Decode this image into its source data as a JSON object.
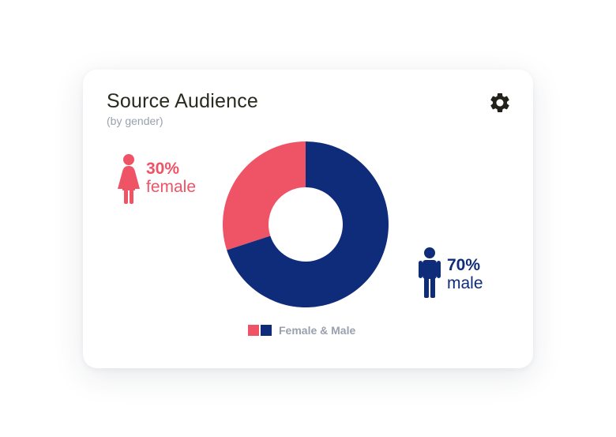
{
  "colors": {
    "female": "#ef5366",
    "male": "#0f2c7a",
    "title": "#2a2a1e",
    "muted": "#98a1ad",
    "gear": "#22221a"
  },
  "header": {
    "title": "Source Audience",
    "subtitle": "(by gender)",
    "settings_icon": "gear-icon"
  },
  "stats": {
    "female": {
      "percent": "30%",
      "label": "female",
      "icon": "female-person-icon"
    },
    "male": {
      "percent": "70%",
      "label": "male",
      "icon": "male-person-icon"
    }
  },
  "chart_data": {
    "type": "pie",
    "donut": true,
    "title": "Source Audience",
    "subtitle": "(by gender)",
    "categories": [
      "female",
      "male"
    ],
    "values": [
      30,
      70
    ],
    "colors": [
      "#ef5366",
      "#0f2c7a"
    ],
    "legend": {
      "label": "Female & Male",
      "placement": "bottom"
    }
  }
}
